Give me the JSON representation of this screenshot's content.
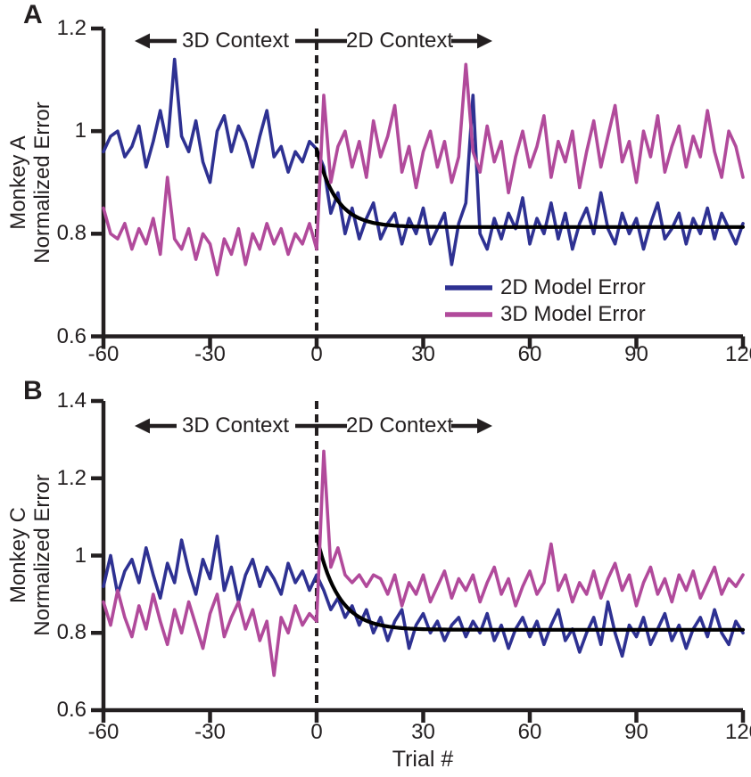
{
  "colors": {
    "series_2d": "#2E3192",
    "series_3d": "#B14A9B",
    "axis": "#231F20",
    "fit": "#000000"
  },
  "panels_shared": {
    "xlabel": "Trial #",
    "xticks": [
      -60,
      -30,
      0,
      30,
      60,
      90,
      120
    ],
    "xtick_labels": [
      "-60",
      "-30",
      "0",
      "30",
      "60",
      "90",
      "120"
    ],
    "context_left": "3D Context",
    "context_right": "2D Context"
  },
  "legend": {
    "position": "inside lower right of panel A",
    "items": [
      {
        "label": "2D Model Error",
        "color": "#2E3192"
      },
      {
        "label": "3D Model Error",
        "color": "#B14A9B"
      }
    ]
  },
  "chart_data": [
    {
      "type": "line",
      "panel_letter": "A",
      "ylabel_line1": "Monkey A",
      "ylabel_line2": "Normalized Error",
      "xlim": [
        -60,
        120
      ],
      "ylim": [
        0.6,
        1.2
      ],
      "yticks": [
        0.6,
        0.8,
        1,
        1.2
      ],
      "ytick_labels": [
        "0.6",
        "0.8",
        "1",
        "1.2"
      ],
      "x_start": -60,
      "x_step": 2,
      "context_switch_x": 0,
      "series": [
        {
          "name": "2D Model Error",
          "color": "#2E3192",
          "values": [
            0.96,
            0.99,
            1.0,
            0.95,
            0.97,
            1.01,
            0.93,
            0.98,
            1.04,
            0.97,
            1.14,
            0.99,
            0.96,
            1.02,
            0.94,
            0.9,
            1.0,
            1.03,
            0.96,
            1.01,
            0.98,
            0.93,
            0.99,
            1.04,
            0.95,
            0.97,
            0.92,
            0.96,
            0.94,
            0.98,
            0.965,
            0.93,
            0.84,
            0.88,
            0.8,
            0.85,
            0.79,
            0.83,
            0.86,
            0.79,
            0.82,
            0.84,
            0.78,
            0.83,
            0.8,
            0.85,
            0.78,
            0.81,
            0.84,
            0.74,
            0.82,
            0.86,
            1.07,
            0.8,
            0.77,
            0.83,
            0.79,
            0.84,
            0.81,
            0.87,
            0.78,
            0.83,
            0.8,
            0.86,
            0.79,
            0.84,
            0.77,
            0.82,
            0.85,
            0.8,
            0.88,
            0.81,
            0.78,
            0.84,
            0.8,
            0.83,
            0.77,
            0.82,
            0.86,
            0.79,
            0.81,
            0.84,
            0.78,
            0.83,
            0.8,
            0.85,
            0.79,
            0.84,
            0.81,
            0.78,
            0.82
          ]
        },
        {
          "name": "3D Model Error",
          "color": "#B14A9B",
          "values": [
            0.85,
            0.8,
            0.79,
            0.82,
            0.77,
            0.81,
            0.78,
            0.83,
            0.76,
            0.91,
            0.79,
            0.77,
            0.81,
            0.75,
            0.8,
            0.78,
            0.72,
            0.79,
            0.76,
            0.81,
            0.74,
            0.8,
            0.77,
            0.82,
            0.78,
            0.81,
            0.76,
            0.8,
            0.78,
            0.82,
            0.77,
            1.07,
            0.9,
            0.97,
            1.0,
            0.93,
            0.98,
            0.91,
            1.02,
            0.95,
            0.99,
            1.05,
            0.92,
            0.97,
            0.89,
            0.96,
            1.0,
            0.93,
            0.98,
            0.9,
            0.95,
            1.13,
            0.96,
            0.92,
            1.01,
            0.94,
            0.98,
            0.88,
            0.95,
            1.0,
            0.93,
            0.97,
            1.03,
            0.91,
            0.98,
            0.94,
            1.0,
            0.89,
            0.96,
            1.02,
            0.93,
            0.99,
            1.05,
            0.94,
            0.98,
            0.9,
            1.0,
            0.95,
            1.03,
            0.92,
            0.97,
            1.01,
            0.93,
            0.99,
            0.95,
            1.04,
            0.96,
            0.91,
            1.0,
            0.97,
            0.91
          ]
        }
      ],
      "fit_curve": {
        "label": "exponential fit",
        "x_start": 0,
        "x_end": 120,
        "y_start": 0.965,
        "y_asymptote": 0.813,
        "tau": 5.5
      }
    },
    {
      "type": "line",
      "panel_letter": "B",
      "ylabel_line1": "Monkey C",
      "ylabel_line2": "Normalized Error",
      "xlim": [
        -60,
        120
      ],
      "ylim": [
        0.6,
        1.4
      ],
      "yticks": [
        0.6,
        0.8,
        1,
        1.2,
        1.4
      ],
      "ytick_labels": [
        "0.6",
        "0.8",
        "1",
        "1.2",
        "1.4"
      ],
      "x_start": -60,
      "x_step": 2,
      "context_switch_x": 0,
      "series": [
        {
          "name": "2D Model Error",
          "color": "#2E3192",
          "values": [
            0.92,
            1.0,
            0.9,
            0.96,
            0.99,
            0.93,
            1.02,
            0.95,
            0.89,
            0.98,
            0.93,
            1.04,
            0.96,
            0.9,
            0.99,
            0.94,
            1.05,
            0.91,
            0.97,
            0.88,
            0.95,
            0.99,
            0.92,
            0.97,
            0.94,
            0.9,
            0.98,
            0.93,
            0.96,
            0.91,
            0.95,
            0.91,
            0.86,
            0.89,
            0.84,
            0.87,
            0.82,
            0.86,
            0.8,
            0.84,
            0.78,
            0.83,
            0.86,
            0.76,
            0.82,
            0.85,
            0.8,
            0.83,
            0.78,
            0.82,
            0.84,
            0.79,
            0.83,
            0.8,
            0.85,
            0.78,
            0.82,
            0.76,
            0.81,
            0.84,
            0.79,
            0.83,
            0.77,
            0.82,
            0.86,
            0.78,
            0.81,
            0.75,
            0.8,
            0.84,
            0.77,
            0.88,
            0.8,
            0.74,
            0.82,
            0.79,
            0.84,
            0.77,
            0.81,
            0.85,
            0.78,
            0.82,
            0.76,
            0.81,
            0.84,
            0.79,
            0.86,
            0.8,
            0.77,
            0.83,
            0.8
          ]
        },
        {
          "name": "3D Model Error",
          "color": "#B14A9B",
          "values": [
            0.88,
            0.82,
            0.91,
            0.84,
            0.79,
            0.87,
            0.81,
            0.9,
            0.83,
            0.77,
            0.86,
            0.8,
            0.88,
            0.82,
            0.76,
            0.85,
            0.9,
            0.79,
            0.84,
            0.88,
            0.81,
            0.86,
            0.78,
            0.83,
            0.69,
            0.84,
            0.8,
            0.87,
            0.82,
            0.85,
            0.83,
            1.27,
            0.97,
            1.02,
            0.95,
            0.93,
            0.95,
            0.92,
            0.95,
            0.94,
            0.9,
            0.95,
            0.87,
            0.93,
            0.9,
            0.95,
            0.88,
            0.92,
            0.96,
            0.89,
            0.94,
            0.91,
            0.95,
            0.88,
            0.93,
            0.97,
            0.9,
            0.94,
            0.87,
            0.92,
            0.96,
            0.9,
            0.93,
            1.03,
            0.91,
            0.95,
            0.88,
            0.93,
            0.9,
            0.96,
            0.89,
            0.94,
            0.98,
            0.91,
            0.95,
            0.87,
            0.93,
            0.97,
            0.9,
            0.94,
            0.88,
            0.95,
            0.91,
            0.96,
            0.89,
            0.93,
            0.97,
            0.9,
            0.94,
            0.92,
            0.95
          ]
        }
      ],
      "fit_curve": {
        "label": "exponential fit",
        "x_start": 0,
        "x_end": 120,
        "y_start": 1.05,
        "y_asymptote": 0.808,
        "tau": 6
      }
    }
  ]
}
